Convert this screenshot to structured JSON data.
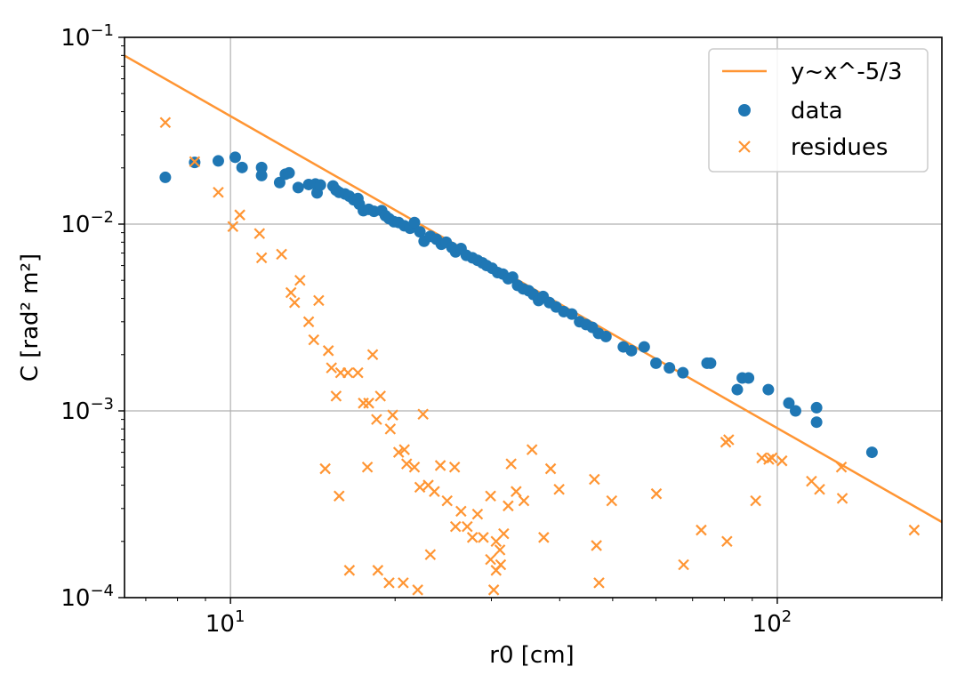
{
  "chart_data": {
    "type": "scatter",
    "xlabel": "r0 [cm]",
    "ylabel": "C [rad² m²]",
    "xscale": "log",
    "yscale": "log",
    "xlim": [
      6.4,
      200
    ],
    "ylim": [
      0.0001,
      0.1
    ],
    "grid": true,
    "legend_position": "top-right",
    "x_ticks": [
      {
        "value": 10,
        "base": "10",
        "exp": "1"
      },
      {
        "value": 100,
        "base": "10",
        "exp": "2"
      }
    ],
    "y_ticks": [
      {
        "value": 0.1,
        "base": "10",
        "exp": "−1"
      },
      {
        "value": 0.01,
        "base": "10",
        "exp": "−2"
      },
      {
        "value": 0.001,
        "base": "10",
        "exp": "−3"
      },
      {
        "value": 0.0001,
        "base": "10",
        "exp": "−4"
      }
    ],
    "colors": {
      "data": "#1f77b4",
      "line": "#ff9533",
      "residues": "#ff9533"
    },
    "series": [
      {
        "name": "y~x^-5/3",
        "kind": "line",
        "x": [
          6.4,
          200
        ],
        "y": [
          0.0798,
          0.000254
        ]
      },
      {
        "name": "data",
        "kind": "scatter-circle",
        "points": [
          [
            7.6,
            0.0178
          ],
          [
            8.6,
            0.0214
          ],
          [
            9.5,
            0.0218
          ],
          [
            10.2,
            0.0228
          ],
          [
            10.5,
            0.0201
          ],
          [
            11.4,
            0.0201
          ],
          [
            11.4,
            0.0182
          ],
          [
            12.3,
            0.0167
          ],
          [
            12.6,
            0.0185
          ],
          [
            12.8,
            0.0188
          ],
          [
            13.3,
            0.0157
          ],
          [
            13.9,
            0.0163
          ],
          [
            14.3,
            0.0164
          ],
          [
            14.4,
            0.0147
          ],
          [
            14.6,
            0.0162
          ],
          [
            15.4,
            0.016
          ],
          [
            15.6,
            0.0152
          ],
          [
            15.8,
            0.0148
          ],
          [
            16.2,
            0.0145
          ],
          [
            16.5,
            0.0141
          ],
          [
            16.8,
            0.0135
          ],
          [
            17.1,
            0.0137
          ],
          [
            17.2,
            0.0128
          ],
          [
            17.5,
            0.0118
          ],
          [
            17.9,
            0.012
          ],
          [
            18.3,
            0.0117
          ],
          [
            18.9,
            0.0118
          ],
          [
            19.2,
            0.0111
          ],
          [
            19.5,
            0.0107
          ],
          [
            19.9,
            0.0103
          ],
          [
            20.3,
            0.0102
          ],
          [
            20.8,
            0.0098
          ],
          [
            21.3,
            0.0095
          ],
          [
            21.7,
            0.0102
          ],
          [
            22.2,
            0.0091
          ],
          [
            22.6,
            0.0081
          ],
          [
            23.2,
            0.0086
          ],
          [
            23.8,
            0.0083
          ],
          [
            24.3,
            0.0078
          ],
          [
            24.8,
            0.008
          ],
          [
            25.4,
            0.0075
          ],
          [
            25.8,
            0.0071
          ],
          [
            26.4,
            0.0074
          ],
          [
            27,
            0.0068
          ],
          [
            27.7,
            0.0066
          ],
          [
            28.3,
            0.0064
          ],
          [
            28.9,
            0.0062
          ],
          [
            29.4,
            0.006
          ],
          [
            30.1,
            0.0058
          ],
          [
            30.8,
            0.0055
          ],
          [
            31.5,
            0.0054
          ],
          [
            32.2,
            0.0051
          ],
          [
            32.8,
            0.0052
          ],
          [
            33.5,
            0.0047
          ],
          [
            34.3,
            0.0045
          ],
          [
            35.1,
            0.0044
          ],
          [
            35.8,
            0.0042
          ],
          [
            36.6,
            0.0039
          ],
          [
            37.3,
            0.0041
          ],
          [
            38.3,
            0.0038
          ],
          [
            39.4,
            0.0036
          ],
          [
            40.7,
            0.0034
          ],
          [
            42.1,
            0.0033
          ],
          [
            43.5,
            0.003
          ],
          [
            44.7,
            0.0029
          ],
          [
            45.9,
            0.0028
          ],
          [
            47.1,
            0.0026
          ],
          [
            48.6,
            0.0025
          ],
          [
            52.3,
            0.0022
          ],
          [
            54.1,
            0.0021
          ],
          [
            57.1,
            0.0022
          ],
          [
            60,
            0.0018
          ],
          [
            63.5,
            0.0017
          ],
          [
            67.2,
            0.0016
          ],
          [
            74.4,
            0.0018
          ],
          [
            75.5,
            0.0018
          ],
          [
            84.5,
            0.0013
          ],
          [
            86.3,
            0.0015
          ],
          [
            88.6,
            0.0015
          ],
          [
            96.3,
            0.0013
          ],
          [
            105,
            0.0011
          ],
          [
            108,
            0.001
          ],
          [
            118,
            0.00104
          ],
          [
            118,
            0.00087
          ],
          [
            149,
            0.0006
          ]
        ]
      },
      {
        "name": "residues",
        "kind": "scatter-x",
        "points": [
          [
            7.6,
            0.035
          ],
          [
            8.6,
            0.0216
          ],
          [
            9.5,
            0.0148
          ],
          [
            10.1,
            0.0097
          ],
          [
            10.4,
            0.0112
          ],
          [
            11.3,
            0.0089
          ],
          [
            11.4,
            0.0066
          ],
          [
            12.4,
            0.0069
          ],
          [
            12.9,
            0.0043
          ],
          [
            13.1,
            0.0038
          ],
          [
            13.4,
            0.005
          ],
          [
            13.9,
            0.003
          ],
          [
            14.2,
            0.0024
          ],
          [
            14.5,
            0.0039
          ],
          [
            15.1,
            0.0021
          ],
          [
            15.3,
            0.0017
          ],
          [
            15.6,
            0.0012
          ],
          [
            15.9,
            0.0016
          ],
          [
            16.4,
            0.0016
          ],
          [
            17.1,
            0.0016
          ],
          [
            17.5,
            0.0011
          ],
          [
            17.9,
            0.0011
          ],
          [
            18.2,
            0.002
          ],
          [
            18.5,
            0.0009
          ],
          [
            18.8,
            0.0012
          ],
          [
            19.6,
            0.0008
          ],
          [
            19.8,
            0.00095
          ],
          [
            20.3,
            0.0006
          ],
          [
            20.8,
            0.00062
          ],
          [
            21,
            0.00052
          ],
          [
            21.7,
            0.0005
          ],
          [
            22.2,
            0.00039
          ],
          [
            22.5,
            0.00096
          ],
          [
            23,
            0.0004
          ],
          [
            23.6,
            0.00037
          ],
          [
            24.2,
            0.00051
          ],
          [
            24.9,
            0.00033
          ],
          [
            25.7,
            0.0005
          ],
          [
            25.8,
            0.00024
          ],
          [
            26.4,
            0.00029
          ],
          [
            27.1,
            0.00024
          ],
          [
            27.7,
            0.00021
          ],
          [
            28.3,
            0.00028
          ],
          [
            29,
            0.00021
          ],
          [
            29.9,
            0.00035
          ],
          [
            30.6,
            0.0002
          ],
          [
            31.1,
            0.00018
          ],
          [
            31.6,
            0.00022
          ],
          [
            32.2,
            0.00031
          ],
          [
            32.6,
            0.00052
          ],
          [
            33.3,
            0.00037
          ],
          [
            34.4,
            0.00033
          ],
          [
            35.6,
            0.00062
          ],
          [
            37.4,
            0.00021
          ],
          [
            38.5,
            0.00049
          ],
          [
            39.9,
            0.00038
          ],
          [
            14.9,
            0.00049
          ],
          [
            15.8,
            0.00035
          ],
          [
            17.8,
            0.0005
          ],
          [
            16.5,
            0.00014
          ],
          [
            18.6,
            0.00014
          ],
          [
            19.5,
            0.00012
          ],
          [
            20.7,
            0.00012
          ],
          [
            22,
            0.00011
          ],
          [
            30.3,
            0.00011
          ],
          [
            30.6,
            0.00014
          ],
          [
            29.9,
            0.00016
          ],
          [
            31.2,
            0.00015
          ],
          [
            23.2,
            0.00017
          ],
          [
            46.3,
            0.00043
          ],
          [
            46.7,
            0.00019
          ],
          [
            47.2,
            0.00012
          ],
          [
            49.8,
            0.00033
          ],
          [
            60.1,
            0.00036
          ],
          [
            67.4,
            0.00015
          ],
          [
            72.6,
            0.00023
          ],
          [
            80.5,
            0.00068
          ],
          [
            81.5,
            0.0007
          ],
          [
            80.9,
            0.0002
          ],
          [
            91.3,
            0.00033
          ],
          [
            93.7,
            0.00056
          ],
          [
            96.5,
            0.00055
          ],
          [
            97.8,
            0.00056
          ],
          [
            102,
            0.00054
          ],
          [
            115.5,
            0.00042
          ],
          [
            119.5,
            0.00038
          ],
          [
            131,
            0.0005
          ],
          [
            131.5,
            0.00034
          ],
          [
            178,
            0.00023
          ]
        ]
      }
    ]
  }
}
